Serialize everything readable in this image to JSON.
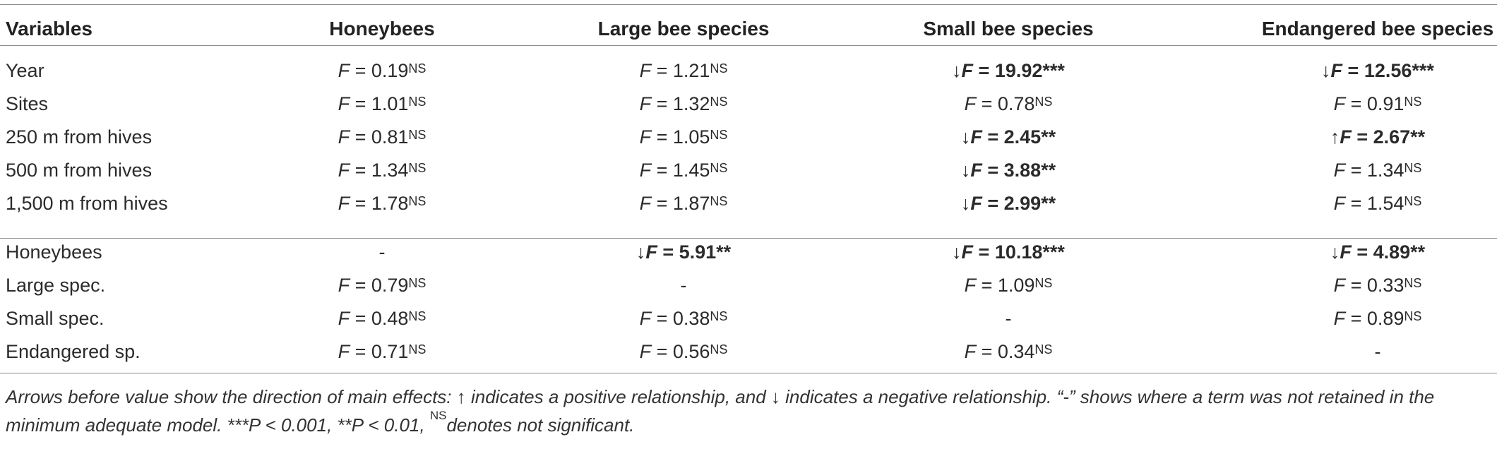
{
  "header": [
    "Variables",
    "Honeybees",
    "Large bee species",
    "Small bee species",
    "Endangered bee species"
  ],
  "groups": [
    {
      "rows": [
        {
          "label": "Year",
          "cells": [
            {
              "arrow": "",
              "value": "0.19",
              "sig": "NS",
              "bold": false
            },
            {
              "arrow": "",
              "value": "1.21",
              "sig": "NS",
              "bold": false
            },
            {
              "arrow": "↓",
              "value": "19.92",
              "sig": "***",
              "bold": true
            },
            {
              "arrow": "↓",
              "value": "12.56",
              "sig": "***",
              "bold": true
            }
          ]
        },
        {
          "label": "Sites",
          "cells": [
            {
              "arrow": "",
              "value": "1.01",
              "sig": "NS",
              "bold": false
            },
            {
              "arrow": "",
              "value": "1.32",
              "sig": "NS",
              "bold": false
            },
            {
              "arrow": "",
              "value": "0.78",
              "sig": "NS",
              "bold": false
            },
            {
              "arrow": "",
              "value": "0.91",
              "sig": "NS",
              "bold": false
            }
          ]
        },
        {
          "label": "250 m from hives",
          "cells": [
            {
              "arrow": "",
              "value": "0.81",
              "sig": "NS",
              "bold": false
            },
            {
              "arrow": "",
              "value": "1.05",
              "sig": "NS",
              "bold": false
            },
            {
              "arrow": "↓",
              "value": "2.45",
              "sig": "**",
              "bold": true
            },
            {
              "arrow": "↑",
              "value": "2.67",
              "sig": "**",
              "bold": true
            }
          ]
        },
        {
          "label": "500 m from hives",
          "cells": [
            {
              "arrow": "",
              "value": "1.34",
              "sig": "NS",
              "bold": false
            },
            {
              "arrow": "",
              "value": "1.45",
              "sig": "NS",
              "bold": false
            },
            {
              "arrow": "↓",
              "value": "3.88",
              "sig": "**",
              "bold": true
            },
            {
              "arrow": "",
              "value": "1.34",
              "sig": "NS",
              "bold": false
            }
          ]
        },
        {
          "label": "1,500 m from hives",
          "cells": [
            {
              "arrow": "",
              "value": "1.78",
              "sig": "NS",
              "bold": false
            },
            {
              "arrow": "",
              "value": "1.87",
              "sig": "NS",
              "bold": false
            },
            {
              "arrow": "↓",
              "value": "2.99",
              "sig": "**",
              "bold": true
            },
            {
              "arrow": "",
              "value": "1.54",
              "sig": "NS",
              "bold": false
            }
          ]
        }
      ]
    },
    {
      "rows": [
        {
          "label": "Honeybees",
          "cells": [
            {
              "dash": "-"
            },
            {
              "arrow": "↓",
              "value": "5.91",
              "sig": "**",
              "bold": true
            },
            {
              "arrow": "↓",
              "value": "10.18",
              "sig": "***",
              "bold": true
            },
            {
              "arrow": "↓",
              "value": "4.89",
              "sig": "**",
              "bold": true
            }
          ]
        },
        {
          "label": "Large spec.",
          "cells": [
            {
              "arrow": "",
              "value": "0.79",
              "sig": "NS",
              "bold": false
            },
            {
              "dash": "-"
            },
            {
              "arrow": "",
              "value": "1.09",
              "sig": "NS",
              "bold": false
            },
            {
              "arrow": "",
              "value": "0.33",
              "sig": "NS",
              "bold": false
            }
          ]
        },
        {
          "label": "Small spec.",
          "cells": [
            {
              "arrow": "",
              "value": "0.48",
              "sig": "NS",
              "bold": false
            },
            {
              "arrow": "",
              "value": "0.38",
              "sig": "NS",
              "bold": false
            },
            {
              "dash": "-"
            },
            {
              "arrow": "",
              "value": "0.89",
              "sig": "NS",
              "bold": false
            }
          ]
        },
        {
          "label": "Endangered sp.",
          "cells": [
            {
              "arrow": "",
              "value": "0.71",
              "sig": "NS",
              "bold": false
            },
            {
              "arrow": "",
              "value": "0.56",
              "sig": "NS",
              "bold": false
            },
            {
              "arrow": "",
              "value": "0.34",
              "sig": "NS",
              "bold": false
            },
            {
              "dash": "-"
            }
          ]
        }
      ]
    }
  ],
  "stat_symbol": "F",
  "equals": " = ",
  "footnote": {
    "part1": "Arrows before value show the direction of main effects: ↑ indicates a positive relationship, and ↓ indicates a negative relationship. “-” shows where a term was not retained in the minimum adequate model. ***",
    "p1": "P",
    "part2": " < 0.001, **",
    "p2": "P",
    "part3": " < 0.01, ",
    "ns": "NS",
    "part4": "denotes not significant."
  }
}
